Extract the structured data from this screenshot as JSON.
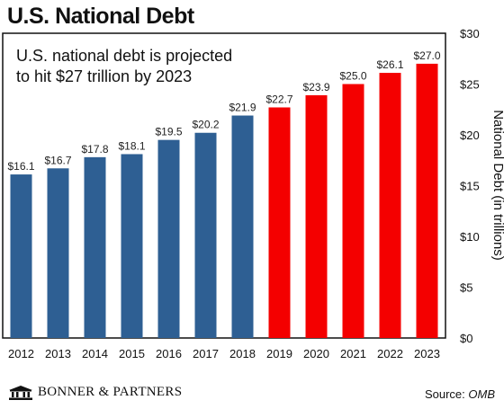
{
  "header": {
    "title": "U.S. National Debt"
  },
  "footer": {
    "brand": "BONNER & PARTNERS",
    "source_label": "Source:",
    "source_value": "OMB"
  },
  "chart_data": {
    "type": "bar",
    "title": "U.S. National Debt",
    "annotation_lines": [
      "U.S. national debt is projected",
      "to hit $27 trillion by 2023"
    ],
    "ylabel": "National Debt (in trillions)",
    "xlabel": "",
    "ylim": [
      0,
      30
    ],
    "yticks": [
      0,
      5,
      10,
      15,
      20,
      25,
      30
    ],
    "ytick_labels": [
      "$0",
      "$5",
      "$10",
      "$15",
      "$20",
      "$25",
      "$30"
    ],
    "y_axis_side": "right",
    "grid": false,
    "categories": [
      "2012",
      "2013",
      "2014",
      "2015",
      "2016",
      "2017",
      "2018",
      "2019",
      "2020",
      "2021",
      "2022",
      "2023"
    ],
    "values": [
      16.1,
      16.7,
      17.8,
      18.1,
      19.5,
      20.2,
      21.9,
      22.7,
      23.9,
      25.0,
      26.1,
      27.0
    ],
    "value_labels": [
      "$16.1",
      "$16.7",
      "$17.8",
      "$18.1",
      "$19.5",
      "$20.2",
      "$21.9",
      "$22.7",
      "$23.9",
      "$25.0",
      "$26.1",
      "$27.0"
    ],
    "bar_colors": [
      "#2e5f93",
      "#2e5f93",
      "#2e5f93",
      "#2e5f93",
      "#2e5f93",
      "#2e5f93",
      "#2e5f93",
      "#f40000",
      "#f40000",
      "#f40000",
      "#f40000",
      "#f40000"
    ]
  }
}
